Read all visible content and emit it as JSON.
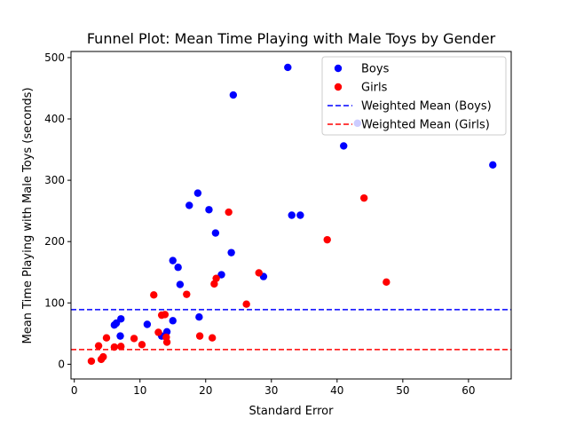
{
  "chart_data": {
    "type": "scatter",
    "title": "Funnel Plot: Mean Time Playing with Male Toys by Gender",
    "xlabel": "Standard Error",
    "ylabel": "Mean Time Playing with Male Toys (seconds)",
    "xlim": [
      -0.5,
      66.5
    ],
    "ylim": [
      -24,
      510
    ],
    "xticks": [
      0,
      10,
      20,
      30,
      40,
      50,
      60
    ],
    "yticks": [
      0,
      100,
      200,
      300,
      400,
      500
    ],
    "grid": false,
    "legend_position": "top-right",
    "series": [
      {
        "name": "Boys",
        "color": "#0000ff",
        "kind": "scatter",
        "points": [
          [
            32.5,
            484
          ],
          [
            24.2,
            439
          ],
          [
            43.1,
            393
          ],
          [
            41.0,
            356
          ],
          [
            63.7,
            325
          ],
          [
            18.8,
            279
          ],
          [
            17.5,
            259
          ],
          [
            20.5,
            252
          ],
          [
            33.1,
            243
          ],
          [
            34.4,
            243
          ],
          [
            21.5,
            214
          ],
          [
            23.9,
            182
          ],
          [
            15.0,
            169
          ],
          [
            15.8,
            158
          ],
          [
            22.4,
            146
          ],
          [
            28.8,
            143
          ],
          [
            16.1,
            130
          ],
          [
            19.0,
            77
          ],
          [
            7.1,
            74
          ],
          [
            15.0,
            71
          ],
          [
            6.1,
            64
          ],
          [
            6.4,
            67
          ],
          [
            11.1,
            65
          ],
          [
            14.1,
            53
          ],
          [
            13.3,
            46
          ],
          [
            7.0,
            46
          ]
        ]
      },
      {
        "name": "Girls",
        "color": "#ff0000",
        "kind": "scatter",
        "points": [
          [
            44.1,
            271
          ],
          [
            23.5,
            248
          ],
          [
            38.5,
            203
          ],
          [
            28.1,
            149
          ],
          [
            21.6,
            140
          ],
          [
            21.3,
            131
          ],
          [
            47.5,
            134
          ],
          [
            12.1,
            113
          ],
          [
            17.1,
            114
          ],
          [
            26.2,
            98
          ],
          [
            13.3,
            80
          ],
          [
            13.8,
            81
          ],
          [
            12.8,
            52
          ],
          [
            19.1,
            46
          ],
          [
            21.0,
            43
          ],
          [
            14.0,
            44
          ],
          [
            4.9,
            43
          ],
          [
            9.1,
            42
          ],
          [
            14.1,
            36
          ],
          [
            10.3,
            32
          ],
          [
            3.7,
            30
          ],
          [
            6.1,
            28
          ],
          [
            7.1,
            29
          ],
          [
            4.4,
            12
          ],
          [
            4.1,
            8
          ],
          [
            2.6,
            5
          ]
        ]
      },
      {
        "name": "Weighted Mean (Boys)",
        "color": "#0000ff",
        "kind": "hline",
        "value": 89
      },
      {
        "name": "Weighted Mean (Girls)",
        "color": "#ff0000",
        "kind": "hline",
        "value": 24
      }
    ]
  }
}
